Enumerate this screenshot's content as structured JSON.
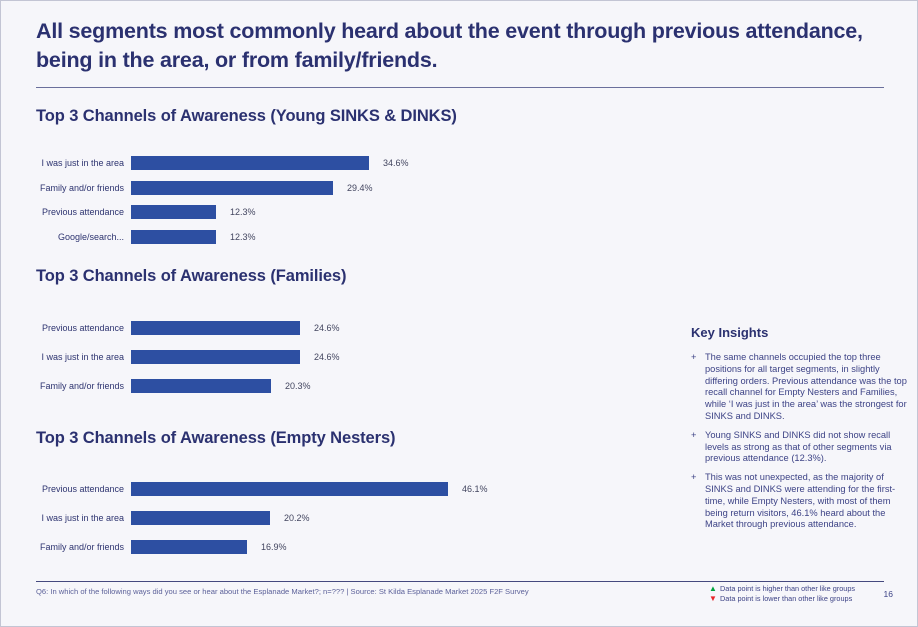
{
  "slide": {
    "title": "All segments most commonly heard about the event through previous attendance, being in the area, or from family/friends.",
    "page_number": "16"
  },
  "chart_data": [
    {
      "type": "bar",
      "orientation": "horizontal",
      "title": "Top 3 Channels of Awareness (Young SINKS & DINKS)",
      "categories": [
        "I was just in the area",
        "Family and/or friends",
        "Previous attendance",
        "Google/search..."
      ],
      "values": [
        34.6,
        29.4,
        12.3,
        12.3
      ],
      "value_labels": [
        "34.6%",
        "29.4%",
        "12.3%",
        "12.3%"
      ],
      "unit": "%",
      "xlim": [
        0,
        67
      ],
      "grid": false,
      "bar_color": "#2d4fa2"
    },
    {
      "type": "bar",
      "orientation": "horizontal",
      "title": "Top 3 Channels of Awareness (Families)",
      "categories": [
        "Previous attendance",
        "I was just in the area",
        "Family and/or friends"
      ],
      "values": [
        24.6,
        24.6,
        20.3
      ],
      "value_labels": [
        "24.6%",
        "24.6%",
        "20.3%"
      ],
      "unit": "%",
      "xlim": [
        0,
        67
      ],
      "grid": false,
      "bar_color": "#2d4fa2"
    },
    {
      "type": "bar",
      "orientation": "horizontal",
      "title": "Top 3 Channels of Awareness (Empty Nesters)",
      "categories": [
        "Previous attendance",
        "I was just in the area",
        "Family and/or friends"
      ],
      "values": [
        46.1,
        20.2,
        16.9
      ],
      "value_labels": [
        "46.1%",
        "20.2%",
        "16.9%"
      ],
      "unit": "%",
      "xlim": [
        0,
        67
      ],
      "grid": false,
      "bar_color": "#2d4fa2"
    }
  ],
  "key_insights": {
    "heading": "Key Insights",
    "bullet_marker": "+",
    "items": [
      "The same channels occupied the top three positions for all target segments, in slightly differing orders. Previous attendance was the top recall channel for Empty Nesters and Families, while ‘I was just in the area’ was the strongest for SINKS and DINKS.",
      "Young SINKS and DINKS did not show recall levels as strong as that of other segments via previous attendance (12.3%).",
      "This was not unexpected, as the majority of SINKS and DINKS were attending for the first-time, while Empty Nesters, with most of them being return visitors, 46.1% heard about the Market through previous attendance."
    ]
  },
  "footer": {
    "source_text": "Q6: In which of the following ways did you see or hear about the Esplanade Market?; n=??? | Source: St Kilda Esplanade Market 2025 F2F Survey",
    "legend": [
      {
        "symbol": "▲",
        "color": "#00a33e",
        "text": "Data point is higher than other like groups"
      },
      {
        "symbol": "▼",
        "color": "#e8252a",
        "text": "Data point is lower than other like groups"
      }
    ]
  },
  "colors": {
    "bar": "#2d4fa2",
    "heading": "#2b3170",
    "background": "#f6f6fa"
  }
}
